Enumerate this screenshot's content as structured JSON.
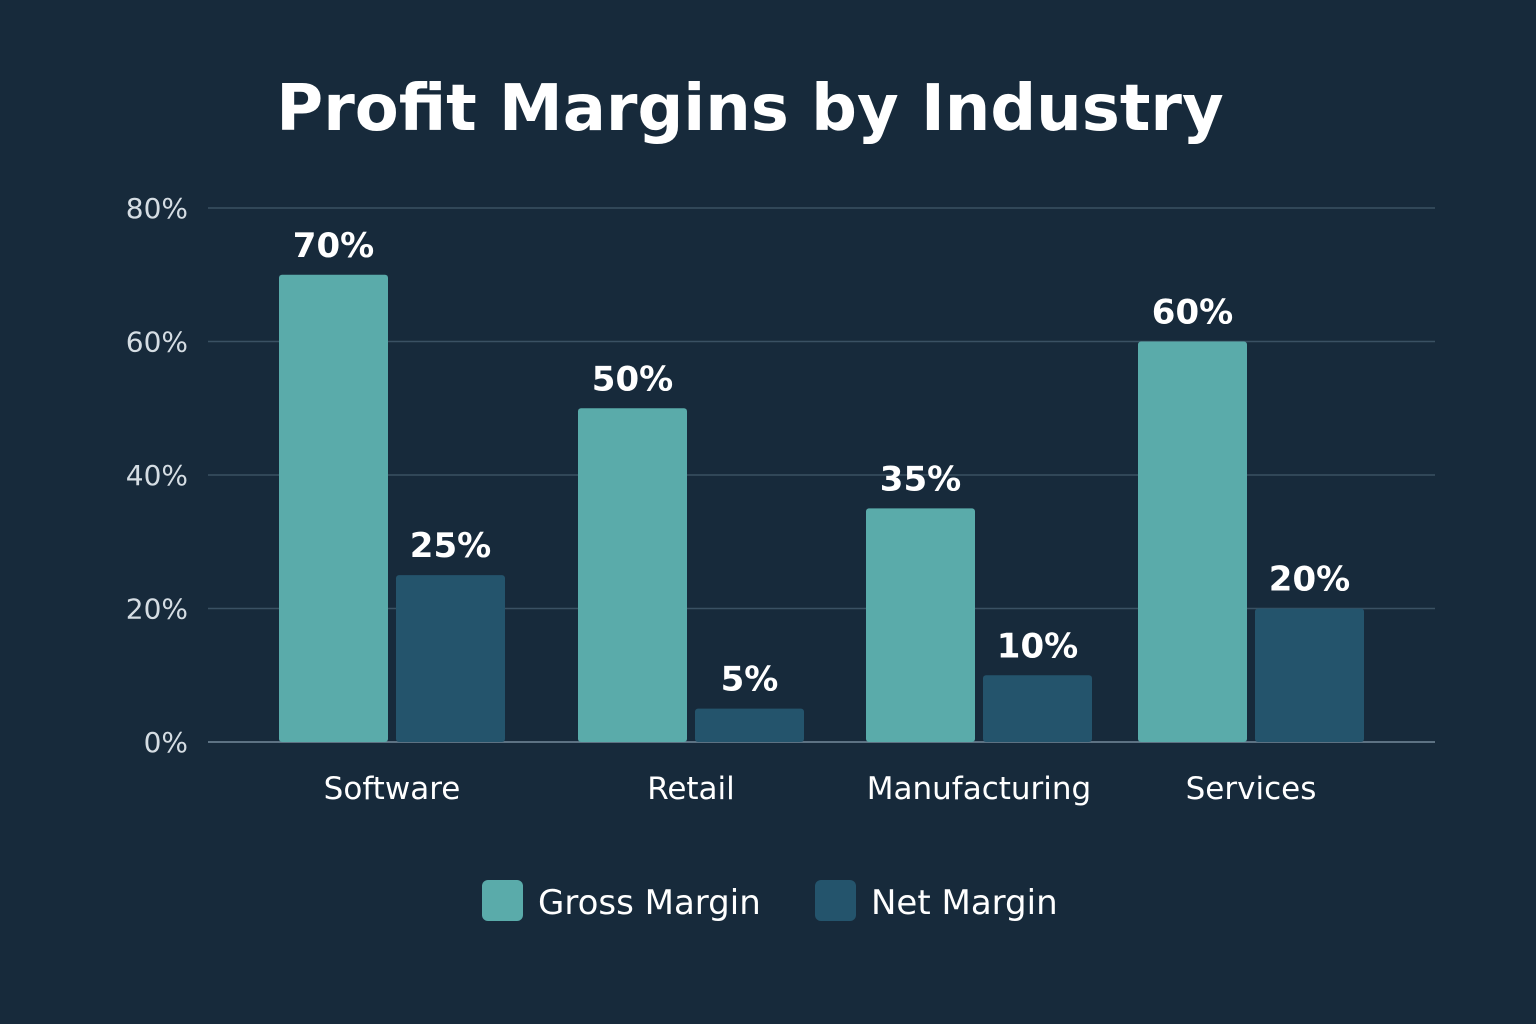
{
  "chart_data": {
    "type": "bar",
    "title": "Profit Margins by Industry",
    "xlabel": "",
    "ylabel": "",
    "ylim": [
      0,
      80
    ],
    "yticks": [
      "0%",
      "20%",
      "40%",
      "60%",
      "80%"
    ],
    "ytick_values": [
      0,
      20,
      40,
      60,
      80
    ],
    "grid": true,
    "legend_position": "bottom-center",
    "categories": [
      "Software",
      "Retail",
      "Manufacturing",
      "Services"
    ],
    "series": [
      {
        "name": "Gross Margin",
        "color": "#5aabaa",
        "values": [
          70,
          50,
          35,
          60
        ],
        "labels": [
          "70%",
          "50%",
          "35%",
          "60%"
        ]
      },
      {
        "name": "Net Margin",
        "color": "#24546c",
        "values": [
          25,
          5,
          10,
          20
        ],
        "labels": [
          "25%",
          "5%",
          "10%",
          "20%"
        ]
      }
    ]
  }
}
